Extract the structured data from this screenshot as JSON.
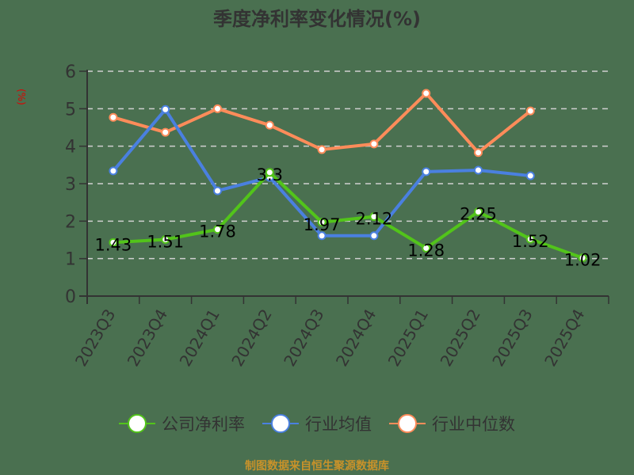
{
  "title": "季度净利率变化情况(%)",
  "unit_label": "(%)",
  "footer": "制图数据来自恒生聚源数据库",
  "colors": {
    "background": "#4a7050",
    "company": "#52c41a",
    "industry_avg": "#4a80e0",
    "industry_median": "#ff8c5a",
    "grid": "#d0d0d0",
    "axis": "#333333",
    "unit": "#e00000",
    "footer": "#c8922a"
  },
  "legend": [
    {
      "name": "公司净利率",
      "color": "#52c41a"
    },
    {
      "name": "行业均值",
      "color": "#4a80e0"
    },
    {
      "name": "行业中位数",
      "color": "#ff8c5a"
    }
  ],
  "chart_data": {
    "type": "line",
    "title": "季度净利率变化情况(%)",
    "xlabel": "",
    "ylabel": "(%)",
    "ylim": [
      0,
      6
    ],
    "yticks": [
      0,
      1,
      2,
      3,
      4,
      5,
      6
    ],
    "grid": true,
    "legend_position": "bottom",
    "categories": [
      "2023Q3",
      "2023Q4",
      "2024Q1",
      "2024Q2",
      "2024Q3",
      "2024Q4",
      "2025Q1",
      "2025Q2",
      "2025Q3",
      "2025Q4"
    ],
    "series": [
      {
        "name": "公司净利率",
        "values": [
          1.43,
          1.51,
          1.78,
          3.3,
          1.97,
          2.12,
          1.28,
          2.25,
          1.52,
          1.02
        ],
        "labels": [
          "1.43",
          "1.51",
          "1.78",
          "3.3",
          "1.97",
          "2.12",
          "1.28",
          "2.25",
          "1.52",
          "1.02"
        ]
      },
      {
        "name": "行业均值",
        "values": [
          3.34,
          4.98,
          2.81,
          3.17,
          1.61,
          1.61,
          3.32,
          3.36,
          3.21,
          null
        ]
      },
      {
        "name": "行业中位数",
        "values": [
          4.77,
          4.37,
          5.0,
          4.56,
          3.91,
          4.06,
          5.41,
          3.83,
          4.94,
          null
        ]
      }
    ]
  }
}
